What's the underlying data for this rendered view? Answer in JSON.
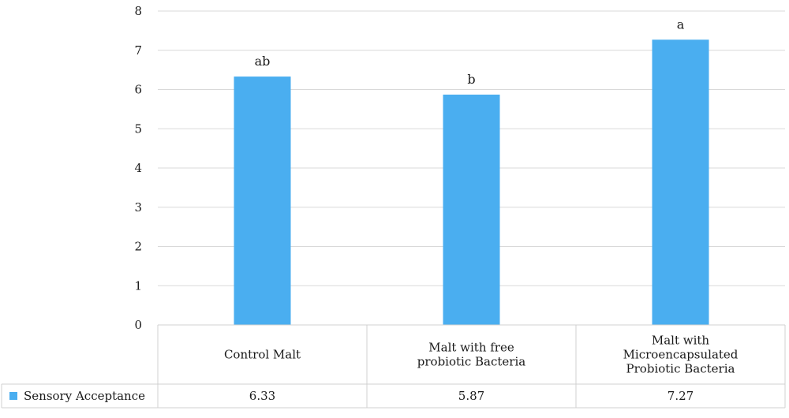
{
  "chart_data": {
    "type": "bar",
    "categories": [
      [
        "Control Malt"
      ],
      [
        "Malt with free",
        "probiotic Bacteria"
      ],
      [
        "Malt with",
        "Microencapsulated",
        "Probiotic Bacteria"
      ]
    ],
    "series": [
      {
        "name": "Sensory Acceptance",
        "values": [
          6.33,
          5.87,
          7.27
        ],
        "value_labels": [
          "6.33",
          "5.87",
          "7.27"
        ],
        "significance_letters": [
          "ab",
          "b",
          "a"
        ],
        "color": "#4aaef0"
      }
    ],
    "ylim": [
      0,
      8
    ],
    "yticks": [
      0,
      1,
      2,
      3,
      4,
      5,
      6,
      7,
      8
    ],
    "grid": true,
    "legend": "data-table-left",
    "colors": {
      "bar": "#4aaef0",
      "grid": "#d9d9d9",
      "table_border": "#d0d0d0"
    }
  }
}
